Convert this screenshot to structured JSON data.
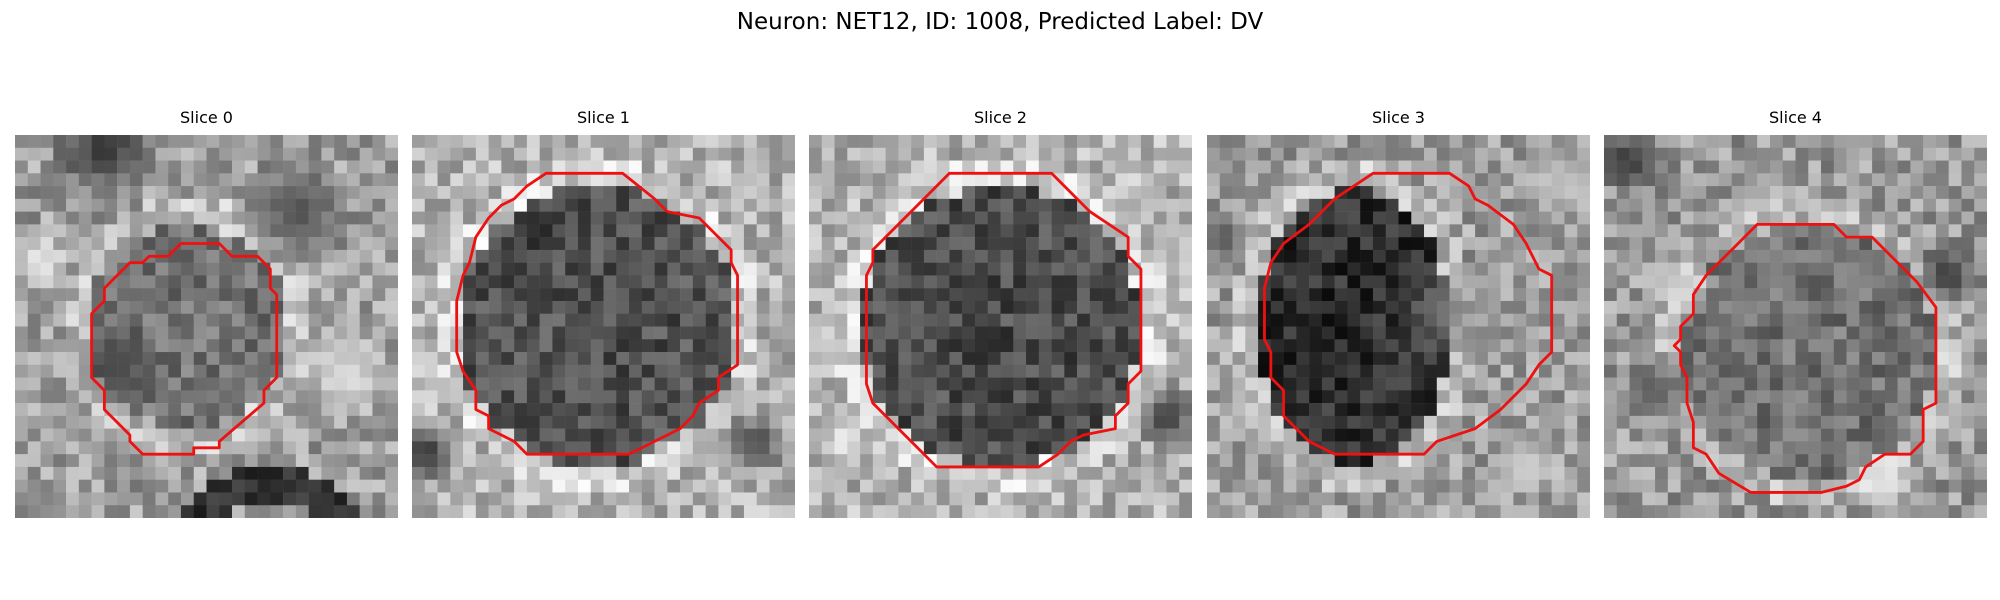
{
  "title": "Neuron: NET12, ID: 1008, Predicted Label: DV",
  "outline_color": "#ee1111",
  "slices": [
    {
      "label": "Slice 0"
    },
    {
      "label": "Slice 1"
    },
    {
      "label": "Slice 2"
    },
    {
      "label": "Slice 3"
    },
    {
      "label": "Slice 4"
    }
  ]
}
